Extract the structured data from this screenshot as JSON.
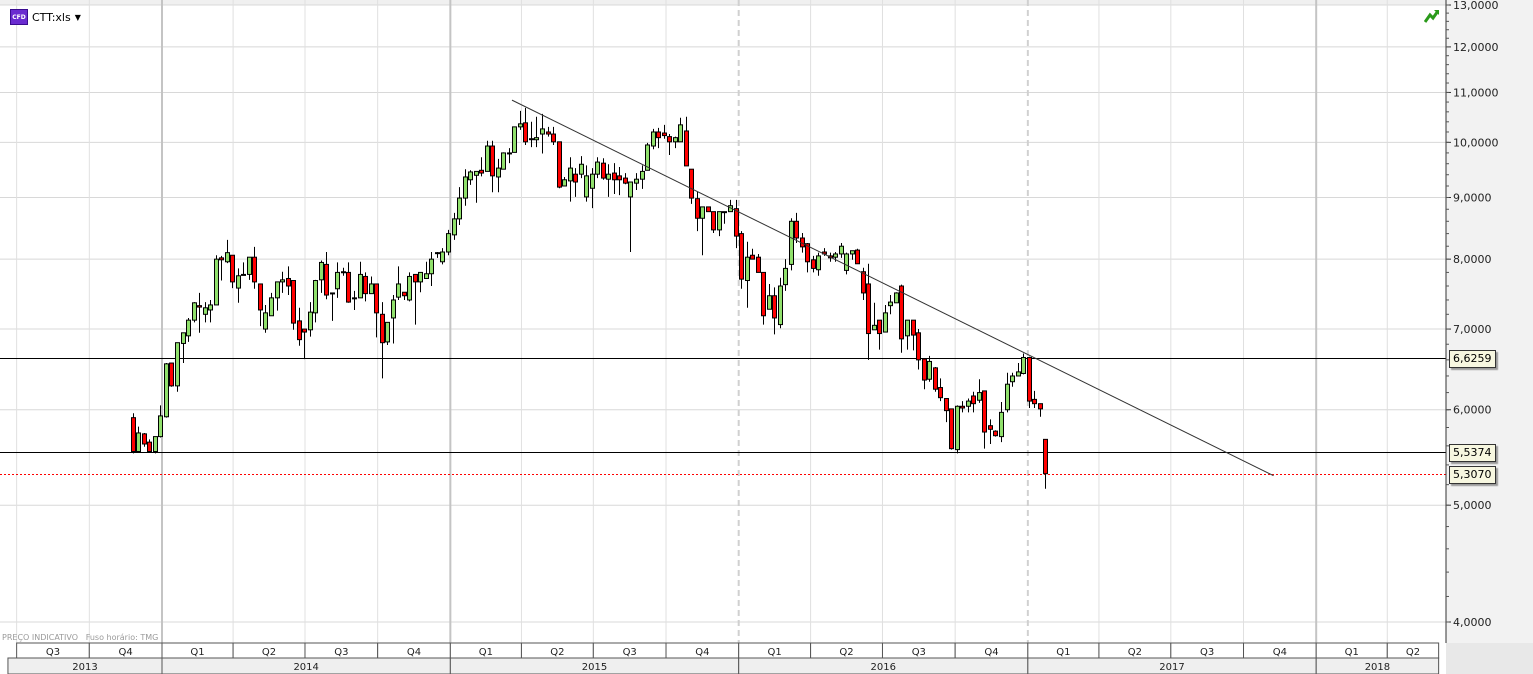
{
  "header": {
    "instrument_badge": "CFD",
    "instrument": "CTT:xls",
    "dropdown_icon": "caret-down-icon",
    "trend_icon": "green-trend-arrow-icon"
  },
  "footer": {
    "indicative": "PREÇO INDICATIVO",
    "timezone": "Fuso horário: TMG"
  },
  "colors": {
    "up": "#90e06c",
    "down": "#ff0000",
    "price_line": "#ff0000",
    "level_line": "#000000",
    "trendline": "#333333",
    "label_bg": "#f7f7e0"
  },
  "chart_data": {
    "type": "candlestick",
    "title": "",
    "y_scale": "log",
    "ylim": [
      4,
      13
    ],
    "grid": true,
    "y_ticks": [
      {
        "value": 13,
        "label": "13,0000"
      },
      {
        "value": 12,
        "label": "12,0000"
      },
      {
        "value": 11,
        "label": "11,0000"
      },
      {
        "value": 10,
        "label": "10,0000"
      },
      {
        "value": 9,
        "label": "9,0000"
      },
      {
        "value": 8,
        "label": "8,0000"
      },
      {
        "value": 7,
        "label": "7,0000"
      },
      {
        "value": 6,
        "label": "6,0000"
      },
      {
        "value": 5,
        "label": "5,0000"
      },
      {
        "value": 4,
        "label": "4,0000"
      }
    ],
    "quarters": [
      {
        "start": "2013-07-01",
        "end": "2013-10-01",
        "label": "Q3"
      },
      {
        "start": "2013-10-01",
        "end": "2014-01-01",
        "label": "Q4"
      },
      {
        "start": "2014-01-01",
        "end": "2014-04-01",
        "label": "Q1"
      },
      {
        "start": "2014-04-01",
        "end": "2014-07-01",
        "label": "Q2"
      },
      {
        "start": "2014-07-01",
        "end": "2014-10-01",
        "label": "Q3"
      },
      {
        "start": "2014-10-01",
        "end": "2015-01-01",
        "label": "Q4"
      },
      {
        "start": "2015-01-01",
        "end": "2015-04-01",
        "label": "Q1"
      },
      {
        "start": "2015-04-01",
        "end": "2015-07-01",
        "label": "Q2"
      },
      {
        "start": "2015-07-01",
        "end": "2015-10-01",
        "label": "Q3"
      },
      {
        "start": "2015-10-01",
        "end": "2016-01-01",
        "label": "Q4"
      },
      {
        "start": "2016-01-01",
        "end": "2016-04-01",
        "label": "Q1"
      },
      {
        "start": "2016-04-01",
        "end": "2016-07-01",
        "label": "Q2"
      },
      {
        "start": "2016-07-01",
        "end": "2016-10-01",
        "label": "Q3"
      },
      {
        "start": "2016-10-01",
        "end": "2017-01-01",
        "label": "Q4"
      },
      {
        "start": "2017-01-01",
        "end": "2017-04-01",
        "label": "Q1"
      },
      {
        "start": "2017-04-01",
        "end": "2017-07-01",
        "label": "Q2"
      },
      {
        "start": "2017-07-01",
        "end": "2017-10-01",
        "label": "Q3"
      },
      {
        "start": "2017-10-01",
        "end": "2018-01-01",
        "label": "Q4"
      },
      {
        "start": "2018-01-01",
        "end": "2018-04-01",
        "label": "Q1"
      },
      {
        "start": "2018-04-01",
        "end": "2018-06-05",
        "label": "Q2"
      }
    ],
    "years": [
      {
        "start": "2013-06-20",
        "end": "2014-01-01",
        "label": "2013"
      },
      {
        "start": "2014-01-01",
        "end": "2015-01-01",
        "label": "2014"
      },
      {
        "start": "2015-01-01",
        "end": "2016-01-01",
        "label": "2015"
      },
      {
        "start": "2016-01-01",
        "end": "2017-01-01",
        "label": "2016"
      },
      {
        "start": "2017-01-01",
        "end": "2018-01-01",
        "label": "2017"
      },
      {
        "start": "2018-01-01",
        "end": "2018-06-05",
        "label": "2018"
      }
    ],
    "levels": [
      {
        "value": 6.6259,
        "label": "6,6259",
        "style": "solid"
      },
      {
        "value": 5.5374,
        "label": "5,5374",
        "style": "solid"
      },
      {
        "value": 5.307,
        "label": "5,3070",
        "style": "dotted-red"
      }
    ],
    "trendline": {
      "from": [
        "2015-03-20",
        10.84
      ],
      "to": [
        "2017-11-08",
        5.29
      ]
    },
    "candle_fields": [
      "date",
      "open",
      "high",
      "low",
      "close"
    ],
    "candles": [
      [
        "2013-11-25",
        5.91,
        5.96,
        5.52,
        5.54
      ],
      [
        "2013-12-02",
        5.54,
        5.81,
        5.54,
        5.74
      ],
      [
        "2013-12-09",
        5.73,
        5.74,
        5.59,
        5.62
      ],
      [
        "2013-12-16",
        5.64,
        5.67,
        5.54,
        5.54
      ],
      [
        "2013-12-23",
        5.54,
        5.7,
        5.52,
        5.7
      ],
      [
        "2013-12-30",
        5.7,
        6.05,
        5.69,
        5.93
      ],
      [
        "2014-01-06",
        5.92,
        6.56,
        5.91,
        6.55
      ],
      [
        "2014-01-13",
        6.56,
        6.56,
        6.27,
        6.28
      ],
      [
        "2014-01-20",
        6.28,
        6.82,
        6.21,
        6.82
      ],
      [
        "2014-01-27",
        6.81,
        6.95,
        6.56,
        6.95
      ],
      [
        "2014-02-03",
        6.91,
        7.15,
        6.83,
        7.12
      ],
      [
        "2014-02-10",
        7.12,
        7.37,
        7.09,
        7.36
      ],
      [
        "2014-02-17",
        7.32,
        7.5,
        6.95,
        7.3
      ],
      [
        "2014-02-24",
        7.2,
        7.37,
        7.09,
        7.29
      ],
      [
        "2014-03-03",
        7.26,
        7.4,
        7.09,
        7.33
      ],
      [
        "2014-03-10",
        7.33,
        8.06,
        7.33,
        8.0
      ],
      [
        "2014-03-17",
        8.02,
        8.05,
        7.68,
        7.99
      ],
      [
        "2014-03-24",
        7.96,
        8.3,
        7.94,
        8.1
      ],
      [
        "2014-03-31",
        8.06,
        8.06,
        7.57,
        7.66
      ],
      [
        "2014-04-07",
        7.57,
        7.86,
        7.36,
        7.75
      ],
      [
        "2014-04-14",
        7.77,
        7.95,
        7.77,
        7.77
      ],
      [
        "2014-04-21",
        7.77,
        8.03,
        7.69,
        8.03
      ],
      [
        "2014-04-28",
        8.03,
        8.19,
        7.56,
        7.66
      ],
      [
        "2014-05-05",
        7.63,
        7.63,
        7.04,
        7.26
      ],
      [
        "2014-05-12",
        7.0,
        7.33,
        6.95,
        7.22
      ],
      [
        "2014-05-19",
        7.18,
        7.5,
        7.18,
        7.43
      ],
      [
        "2014-05-26",
        7.43,
        7.66,
        7.25,
        7.66
      ],
      [
        "2014-06-02",
        7.66,
        7.81,
        7.5,
        7.69
      ],
      [
        "2014-06-09",
        7.71,
        7.89,
        7.47,
        7.6
      ],
      [
        "2014-06-16",
        7.68,
        7.68,
        6.99,
        7.08
      ],
      [
        "2014-06-23",
        7.11,
        7.29,
        6.78,
        6.86
      ],
      [
        "2014-06-30",
        7.0,
        7.0,
        6.61,
        6.96
      ],
      [
        "2014-07-07",
        6.99,
        7.37,
        6.9,
        7.23
      ],
      [
        "2014-07-14",
        7.22,
        7.69,
        7.09,
        7.68
      ],
      [
        "2014-07-21",
        7.69,
        7.98,
        7.5,
        7.95
      ],
      [
        "2014-07-28",
        7.92,
        8.11,
        7.41,
        7.47
      ],
      [
        "2014-08-04",
        7.5,
        7.5,
        7.11,
        7.5
      ],
      [
        "2014-08-11",
        7.56,
        7.95,
        7.43,
        7.8
      ],
      [
        "2014-08-18",
        7.81,
        7.87,
        7.75,
        7.81
      ],
      [
        "2014-08-25",
        7.8,
        7.95,
        7.36,
        7.37
      ],
      [
        "2014-09-01",
        7.43,
        7.53,
        7.26,
        7.43
      ],
      [
        "2014-09-08",
        7.43,
        7.96,
        7.43,
        7.77
      ],
      [
        "2014-09-15",
        7.74,
        7.8,
        7.38,
        7.49
      ],
      [
        "2014-09-22",
        7.49,
        7.74,
        7.49,
        7.63
      ],
      [
        "2014-09-29",
        7.63,
        7.63,
        6.89,
        7.22
      ],
      [
        "2014-10-06",
        7.2,
        7.37,
        6.37,
        6.82
      ],
      [
        "2014-10-13",
        6.83,
        7.09,
        6.79,
        7.09
      ],
      [
        "2014-10-20",
        7.15,
        7.47,
        6.81,
        7.4
      ],
      [
        "2014-10-27",
        7.44,
        7.89,
        7.4,
        7.63
      ],
      [
        "2014-11-03",
        7.51,
        7.51,
        7.4,
        7.46
      ],
      [
        "2014-11-10",
        7.4,
        7.8,
        7.38,
        7.74
      ],
      [
        "2014-11-17",
        7.77,
        7.77,
        7.06,
        7.66
      ],
      [
        "2014-11-24",
        7.66,
        7.8,
        7.51,
        7.8
      ],
      [
        "2014-12-01",
        7.71,
        7.96,
        7.71,
        7.78
      ],
      [
        "2014-12-08",
        7.78,
        8.11,
        7.6,
        8.0
      ],
      [
        "2014-12-15",
        8.1,
        8.11,
        8.02,
        8.1
      ],
      [
        "2014-12-22",
        7.96,
        8.17,
        7.92,
        8.11
      ],
      [
        "2014-12-29",
        8.11,
        8.46,
        8.06,
        8.4
      ],
      [
        "2015-01-05",
        8.38,
        8.74,
        8.3,
        8.64
      ],
      [
        "2015-01-12",
        8.64,
        9.18,
        8.54,
        8.99
      ],
      [
        "2015-01-19",
        8.99,
        9.5,
        8.86,
        9.36
      ],
      [
        "2015-01-26",
        9.31,
        9.48,
        9.22,
        9.45
      ],
      [
        "2015-02-02",
        9.39,
        9.46,
        8.91,
        9.46
      ],
      [
        "2015-02-09",
        9.48,
        9.72,
        9.37,
        9.43
      ],
      [
        "2015-02-16",
        9.46,
        10.03,
        9.46,
        9.93
      ],
      [
        "2015-02-23",
        9.93,
        10.03,
        9.09,
        9.38
      ],
      [
        "2015-03-02",
        9.36,
        9.69,
        9.09,
        9.52
      ],
      [
        "2015-03-09",
        9.5,
        9.81,
        9.5,
        9.8
      ],
      [
        "2015-03-16",
        9.8,
        9.89,
        9.61,
        9.8
      ],
      [
        "2015-03-23",
        9.81,
        10.3,
        9.81,
        10.3
      ],
      [
        "2015-03-30",
        10.3,
        10.62,
        10.24,
        10.36
      ],
      [
        "2015-04-06",
        10.38,
        10.68,
        9.95,
        10.01
      ],
      [
        "2015-04-13",
        10.07,
        10.4,
        9.91,
        10.07
      ],
      [
        "2015-04-20",
        10.05,
        10.5,
        9.91,
        10.09
      ],
      [
        "2015-04-27",
        10.16,
        10.56,
        9.79,
        10.26
      ],
      [
        "2015-05-04",
        10.2,
        10.3,
        10.11,
        10.16
      ],
      [
        "2015-05-11",
        10.16,
        10.3,
        9.95,
        10.01
      ],
      [
        "2015-05-18",
        10.01,
        10.01,
        9.16,
        9.18
      ],
      [
        "2015-05-25",
        9.2,
        9.36,
        9.2,
        9.31
      ],
      [
        "2015-06-01",
        9.29,
        9.72,
        8.93,
        9.52
      ],
      [
        "2015-06-08",
        9.41,
        9.52,
        9.01,
        9.27
      ],
      [
        "2015-06-15",
        9.41,
        9.74,
        9.34,
        9.59
      ],
      [
        "2015-06-22",
        9.01,
        9.57,
        8.93,
        9.38
      ],
      [
        "2015-06-29",
        9.16,
        9.52,
        8.82,
        9.41
      ],
      [
        "2015-07-06",
        9.41,
        9.72,
        9.34,
        9.63
      ],
      [
        "2015-07-13",
        9.61,
        9.7,
        9.31,
        9.34
      ],
      [
        "2015-07-20",
        9.32,
        9.59,
        9.01,
        9.41
      ],
      [
        "2015-07-27",
        9.43,
        9.61,
        9.06,
        9.31
      ],
      [
        "2015-08-03",
        9.38,
        9.54,
        9.04,
        9.31
      ],
      [
        "2015-08-10",
        9.34,
        9.43,
        9.23,
        9.25
      ],
      [
        "2015-08-17",
        9.01,
        9.27,
        8.11,
        9.27
      ],
      [
        "2015-08-24",
        9.25,
        9.43,
        9.13,
        9.32
      ],
      [
        "2015-08-31",
        9.32,
        9.57,
        9.15,
        9.46
      ],
      [
        "2015-09-07",
        9.48,
        9.99,
        9.48,
        9.95
      ],
      [
        "2015-09-14",
        9.93,
        10.26,
        9.87,
        10.2
      ],
      [
        "2015-09-21",
        10.2,
        10.28,
        9.89,
        10.09
      ],
      [
        "2015-09-28",
        10.18,
        10.34,
        10.07,
        10.13
      ],
      [
        "2015-10-05",
        10.11,
        10.16,
        9.76,
        10.01
      ],
      [
        "2015-10-12",
        10.01,
        10.11,
        9.89,
        10.09
      ],
      [
        "2015-10-19",
        10.01,
        10.48,
        10.01,
        10.34
      ],
      [
        "2015-10-26",
        10.22,
        10.5,
        9.56,
        9.56
      ],
      [
        "2015-11-02",
        9.5,
        9.5,
        8.89,
        8.99
      ],
      [
        "2015-11-09",
        8.98,
        9.1,
        8.44,
        8.65
      ],
      [
        "2015-11-16",
        8.65,
        8.84,
        8.06,
        8.84
      ],
      [
        "2015-11-23",
        8.84,
        8.84,
        8.76,
        8.76
      ],
      [
        "2015-11-30",
        8.76,
        8.76,
        8.41,
        8.46
      ],
      [
        "2015-12-07",
        8.46,
        8.76,
        8.36,
        8.76
      ],
      [
        "2015-12-14",
        8.76,
        8.76,
        8.56,
        8.76
      ],
      [
        "2015-12-21",
        8.76,
        8.96,
        8.76,
        8.86
      ],
      [
        "2015-12-28",
        8.81,
        8.96,
        8.17,
        8.36
      ],
      [
        "2016-01-04",
        8.4,
        8.44,
        7.56,
        7.7
      ],
      [
        "2016-01-11",
        7.68,
        8.27,
        7.29,
        8.03
      ],
      [
        "2016-01-18",
        8.06,
        8.16,
        8.0,
        8.0
      ],
      [
        "2016-01-25",
        8.03,
        8.08,
        7.8,
        7.8
      ],
      [
        "2016-02-01",
        7.8,
        7.8,
        7.06,
        7.18
      ],
      [
        "2016-02-08",
        7.27,
        7.63,
        7.27,
        7.46
      ],
      [
        "2016-02-15",
        7.46,
        7.58,
        6.93,
        7.15
      ],
      [
        "2016-02-22",
        7.06,
        7.72,
        7.01,
        7.6
      ],
      [
        "2016-02-29",
        7.62,
        8.0,
        7.53,
        7.86
      ],
      [
        "2016-03-07",
        7.92,
        8.65,
        7.83,
        8.6
      ],
      [
        "2016-03-14",
        8.6,
        8.74,
        8.25,
        8.33
      ],
      [
        "2016-03-21",
        8.33,
        8.41,
        8.1,
        8.19
      ],
      [
        "2016-03-28",
        8.24,
        8.25,
        7.8,
        7.96
      ],
      [
        "2016-04-04",
        7.99,
        8.05,
        7.8,
        7.86
      ],
      [
        "2016-04-11",
        7.84,
        8.1,
        7.75,
        8.05
      ],
      [
        "2016-04-18",
        8.11,
        8.17,
        8.05,
        8.08
      ],
      [
        "2016-04-25",
        8.05,
        8.1,
        7.96,
        8.02
      ],
      [
        "2016-05-02",
        8.03,
        8.11,
        7.96,
        8.08
      ],
      [
        "2016-05-09",
        8.08,
        8.25,
        8.02,
        8.2
      ],
      [
        "2016-05-16",
        7.83,
        8.1,
        7.77,
        8.08
      ],
      [
        "2016-05-23",
        8.08,
        8.13,
        7.99,
        8.13
      ],
      [
        "2016-05-30",
        8.14,
        8.16,
        7.93,
        7.93
      ],
      [
        "2016-06-06",
        7.81,
        7.87,
        7.4,
        7.5
      ],
      [
        "2016-06-13",
        7.63,
        7.93,
        6.6,
        6.94
      ],
      [
        "2016-06-20",
        6.99,
        7.36,
        6.99,
        7.05
      ],
      [
        "2016-06-27",
        7.12,
        7.12,
        6.73,
        6.94
      ],
      [
        "2016-07-04",
        6.96,
        7.33,
        6.96,
        7.22
      ],
      [
        "2016-07-11",
        7.32,
        7.47,
        7.2,
        7.37
      ],
      [
        "2016-07-18",
        7.36,
        7.51,
        7.36,
        7.5
      ],
      [
        "2016-07-25",
        7.6,
        7.62,
        6.69,
        6.87
      ],
      [
        "2016-08-01",
        6.91,
        7.12,
        6.73,
        7.12
      ],
      [
        "2016-08-08",
        7.12,
        7.12,
        6.72,
        6.92
      ],
      [
        "2016-08-15",
        6.95,
        7.0,
        6.48,
        6.6
      ],
      [
        "2016-08-22",
        6.61,
        6.61,
        6.24,
        6.35
      ],
      [
        "2016-08-29",
        6.36,
        6.65,
        6.33,
        6.58
      ],
      [
        "2016-09-05",
        6.5,
        6.51,
        6.21,
        6.24
      ],
      [
        "2016-09-12",
        6.26,
        6.37,
        6.1,
        6.14
      ],
      [
        "2016-09-19",
        6.13,
        6.13,
        5.86,
        5.99
      ],
      [
        "2016-09-26",
        6.01,
        6.01,
        5.56,
        5.57
      ],
      [
        "2016-10-03",
        5.56,
        6.05,
        5.52,
        6.04
      ],
      [
        "2016-10-10",
        6.04,
        6.1,
        5.97,
        6.02
      ],
      [
        "2016-10-17",
        6.04,
        6.13,
        5.97,
        6.1
      ],
      [
        "2016-10-24",
        6.16,
        6.21,
        5.97,
        6.07
      ],
      [
        "2016-10-31",
        6.11,
        6.36,
        6.08,
        6.2
      ],
      [
        "2016-11-07",
        6.22,
        6.22,
        5.57,
        5.75
      ],
      [
        "2016-11-14",
        5.82,
        5.89,
        5.62,
        5.78
      ],
      [
        "2016-11-21",
        5.76,
        5.77,
        5.7,
        5.71
      ],
      [
        "2016-11-28",
        5.7,
        6.09,
        5.64,
        5.97
      ],
      [
        "2016-12-05",
        6.0,
        6.44,
        5.97,
        6.3
      ],
      [
        "2016-12-12",
        6.33,
        6.44,
        6.27,
        6.4
      ],
      [
        "2016-12-19",
        6.4,
        6.56,
        6.4,
        6.45
      ],
      [
        "2016-12-26",
        6.43,
        6.68,
        6.42,
        6.63
      ],
      [
        "2017-01-02",
        6.63,
        6.64,
        6.02,
        6.1
      ],
      [
        "2017-01-09",
        6.12,
        6.22,
        6.02,
        6.07
      ],
      [
        "2017-01-16",
        6.07,
        6.07,
        5.92,
        6.01
      ],
      [
        "2017-01-23",
        5.67,
        5.67,
        5.16,
        5.31
      ]
    ]
  }
}
